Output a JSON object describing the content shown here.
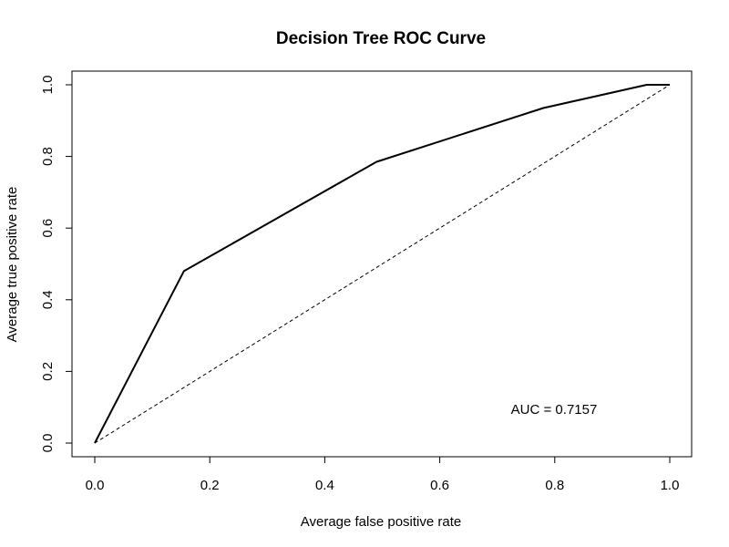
{
  "chart_data": {
    "type": "line",
    "title": "Decision Tree ROC Curve",
    "xlabel": "Average false positive rate",
    "ylabel": "Average true positive rate",
    "xlim": [
      0,
      1
    ],
    "ylim": [
      0,
      1
    ],
    "xticks": [
      "0.0",
      "0.2",
      "0.4",
      "0.6",
      "0.8",
      "1.0"
    ],
    "yticks": [
      "0.0",
      "0.2",
      "0.4",
      "0.6",
      "0.8",
      "1.0"
    ],
    "grid": false,
    "legend": "none",
    "annotation": "AUC = 0.7157",
    "series": [
      {
        "style": "solid",
        "color": "#000000",
        "x": [
          0.0,
          0.155,
          0.49,
          0.78,
          0.96,
          1.0
        ],
        "y": [
          0.0,
          0.48,
          0.785,
          0.935,
          1.0,
          1.0
        ]
      },
      {
        "style": "dashed",
        "color": "#000000",
        "x": [
          0.0,
          0.2,
          0.4,
          0.63,
          0.8,
          1.0
        ],
        "y": [
          0.0,
          0.2,
          0.4,
          0.63,
          0.8,
          1.0
        ]
      }
    ]
  }
}
